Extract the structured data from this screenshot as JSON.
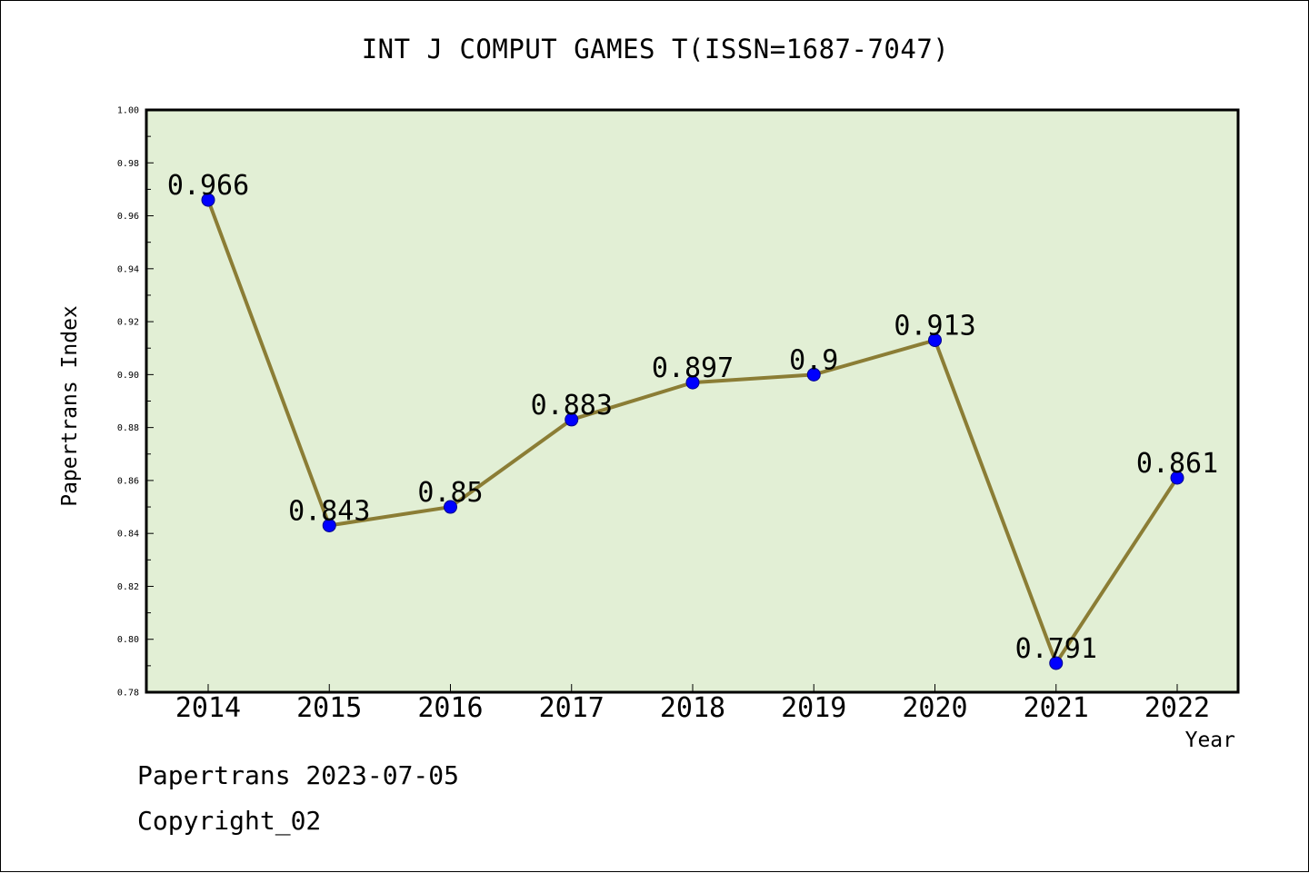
{
  "footer": {
    "date_text": "Papertrans 2023-07-05",
    "copyright_text": "Copyright_02"
  },
  "chart_data": {
    "type": "line",
    "title": "INT J COMPUT GAMES T(ISSN=1687-7047)",
    "xlabel": "Year",
    "ylabel": "Papertrans Index",
    "categories": [
      "2014",
      "2015",
      "2016",
      "2017",
      "2018",
      "2019",
      "2020",
      "2021",
      "2022"
    ],
    "series": [
      {
        "values": [
          0.966,
          0.843,
          0.85,
          0.883,
          0.897,
          0.9,
          0.913,
          0.791,
          0.861
        ],
        "labels": [
          "0.966",
          "0.843",
          "0.85",
          "0.883",
          "0.897",
          "0.9",
          "0.913",
          "0.791",
          "0.861"
        ]
      }
    ],
    "ylim": [
      0.78,
      1.0
    ],
    "yticks": [
      "0.78",
      "0.80",
      "0.82",
      "0.84",
      "0.86",
      "0.88",
      "0.90",
      "0.92",
      "0.94",
      "0.96",
      "0.98",
      "1.00"
    ],
    "grid": false,
    "legend": "none",
    "colors": {
      "plot_background": "#e2efd5",
      "line": "#8b7d35",
      "marker": "#0000ff",
      "axis": "#000000"
    }
  }
}
